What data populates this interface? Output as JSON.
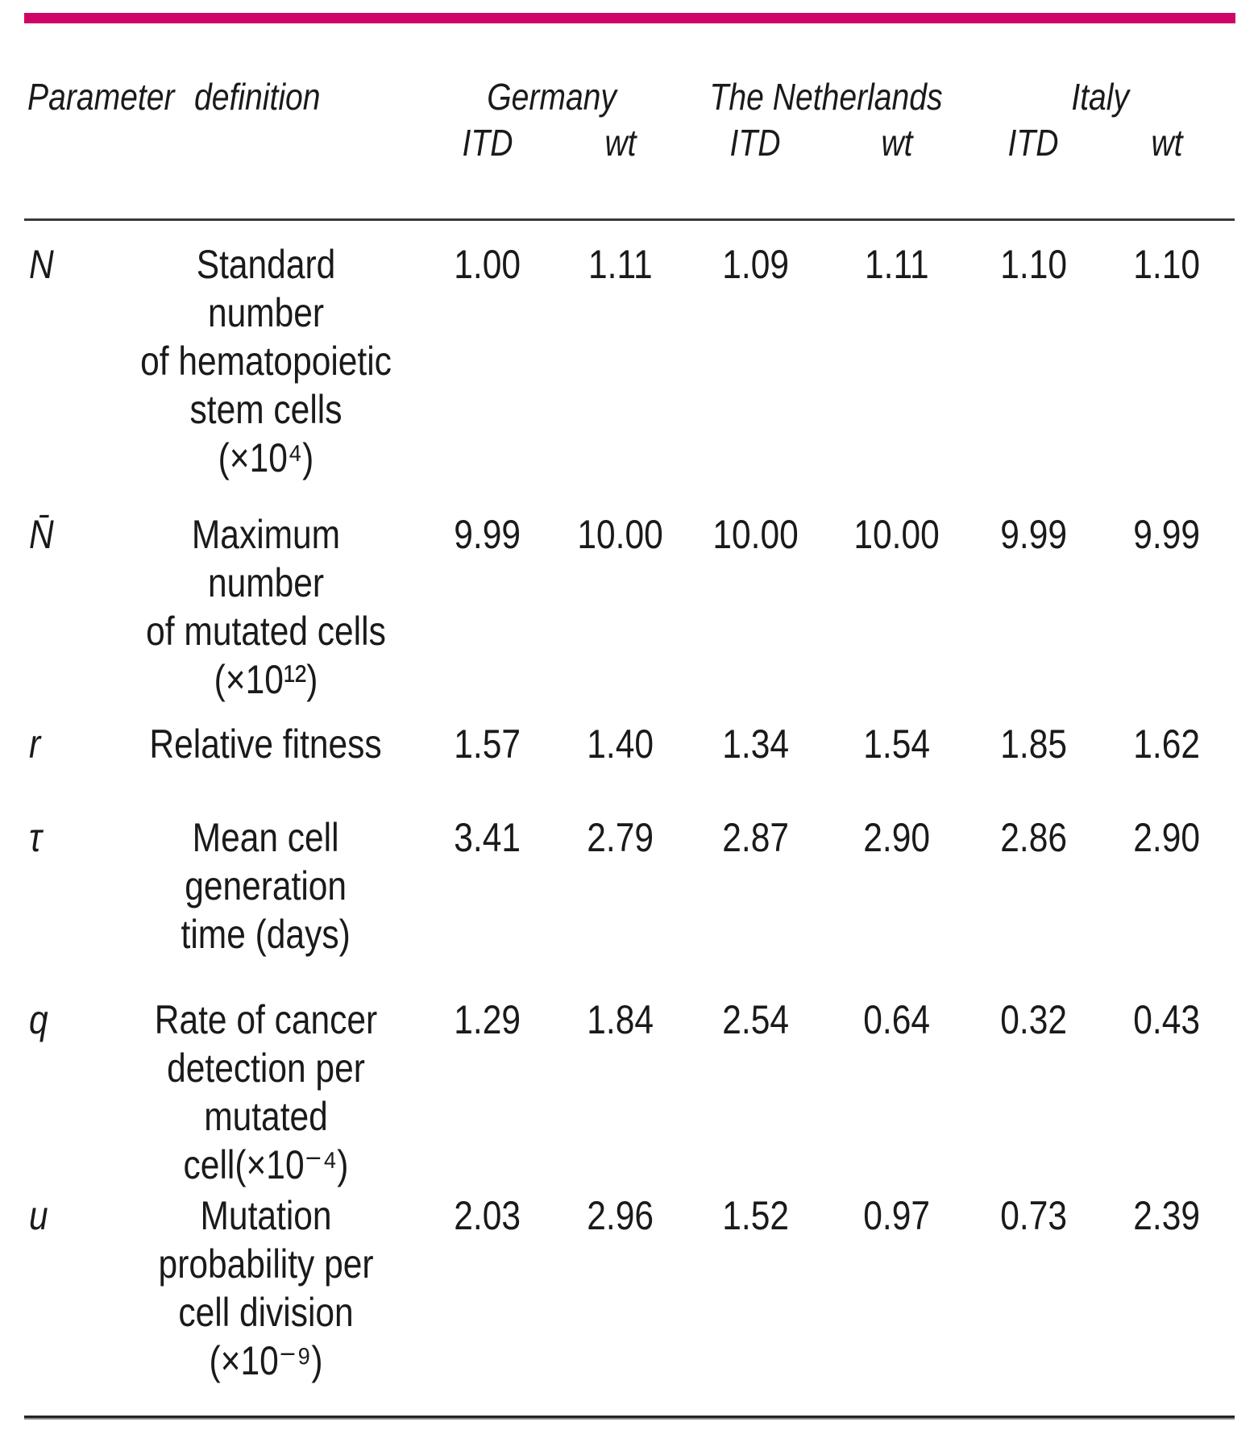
{
  "page": {
    "background_color": "#ffffff",
    "accent_color": "#ce0566",
    "rule_color": "#3a3a3a",
    "text_color": "#1a1a1a"
  },
  "table": {
    "header": {
      "parameter_definition": "Parameter definition",
      "groups": [
        {
          "name": "Germany",
          "sub": [
            "ITD",
            "wt"
          ]
        },
        {
          "name": "The Netherlands",
          "sub": [
            "ITD",
            "wt"
          ]
        },
        {
          "name": "Italy",
          "sub": [
            "ITD",
            "wt"
          ]
        }
      ]
    },
    "rows": [
      {
        "symbol": "N",
        "definition": "Standard number\nof hematopoietic\nstem cells\n(×10⁴)",
        "values": [
          "1.00",
          "1.11",
          "1.09",
          "1.11",
          "1.10",
          "1.10"
        ]
      },
      {
        "symbol": "N̄",
        "definition": "Maximum number\nof mutated cells\n(×10¹²)",
        "values": [
          "9.99",
          "10.00",
          "10.00",
          "10.00",
          "9.99",
          "9.99"
        ]
      },
      {
        "symbol": "r",
        "definition": "Relative fitness",
        "values": [
          "1.57",
          "1.40",
          "1.34",
          "1.54",
          "1.85",
          "1.62"
        ]
      },
      {
        "symbol": "τ",
        "definition": "Mean cell\ngeneration\ntime (days)",
        "values": [
          "3.41",
          "2.79",
          "2.87",
          "2.90",
          "2.86",
          "2.90"
        ]
      },
      {
        "symbol": "q",
        "definition": "Rate of cancer\ndetection per\nmutated cell(×10⁻⁴)",
        "values": [
          "1.29",
          "1.84",
          "2.54",
          "0.64",
          "0.32",
          "0.43"
        ]
      },
      {
        "symbol": "u",
        "definition": "Mutation\nprobability per\ncell division\n(×10⁻⁹)",
        "values": [
          "2.03",
          "2.96",
          "1.52",
          "0.97",
          "0.73",
          "2.39"
        ]
      }
    ]
  }
}
